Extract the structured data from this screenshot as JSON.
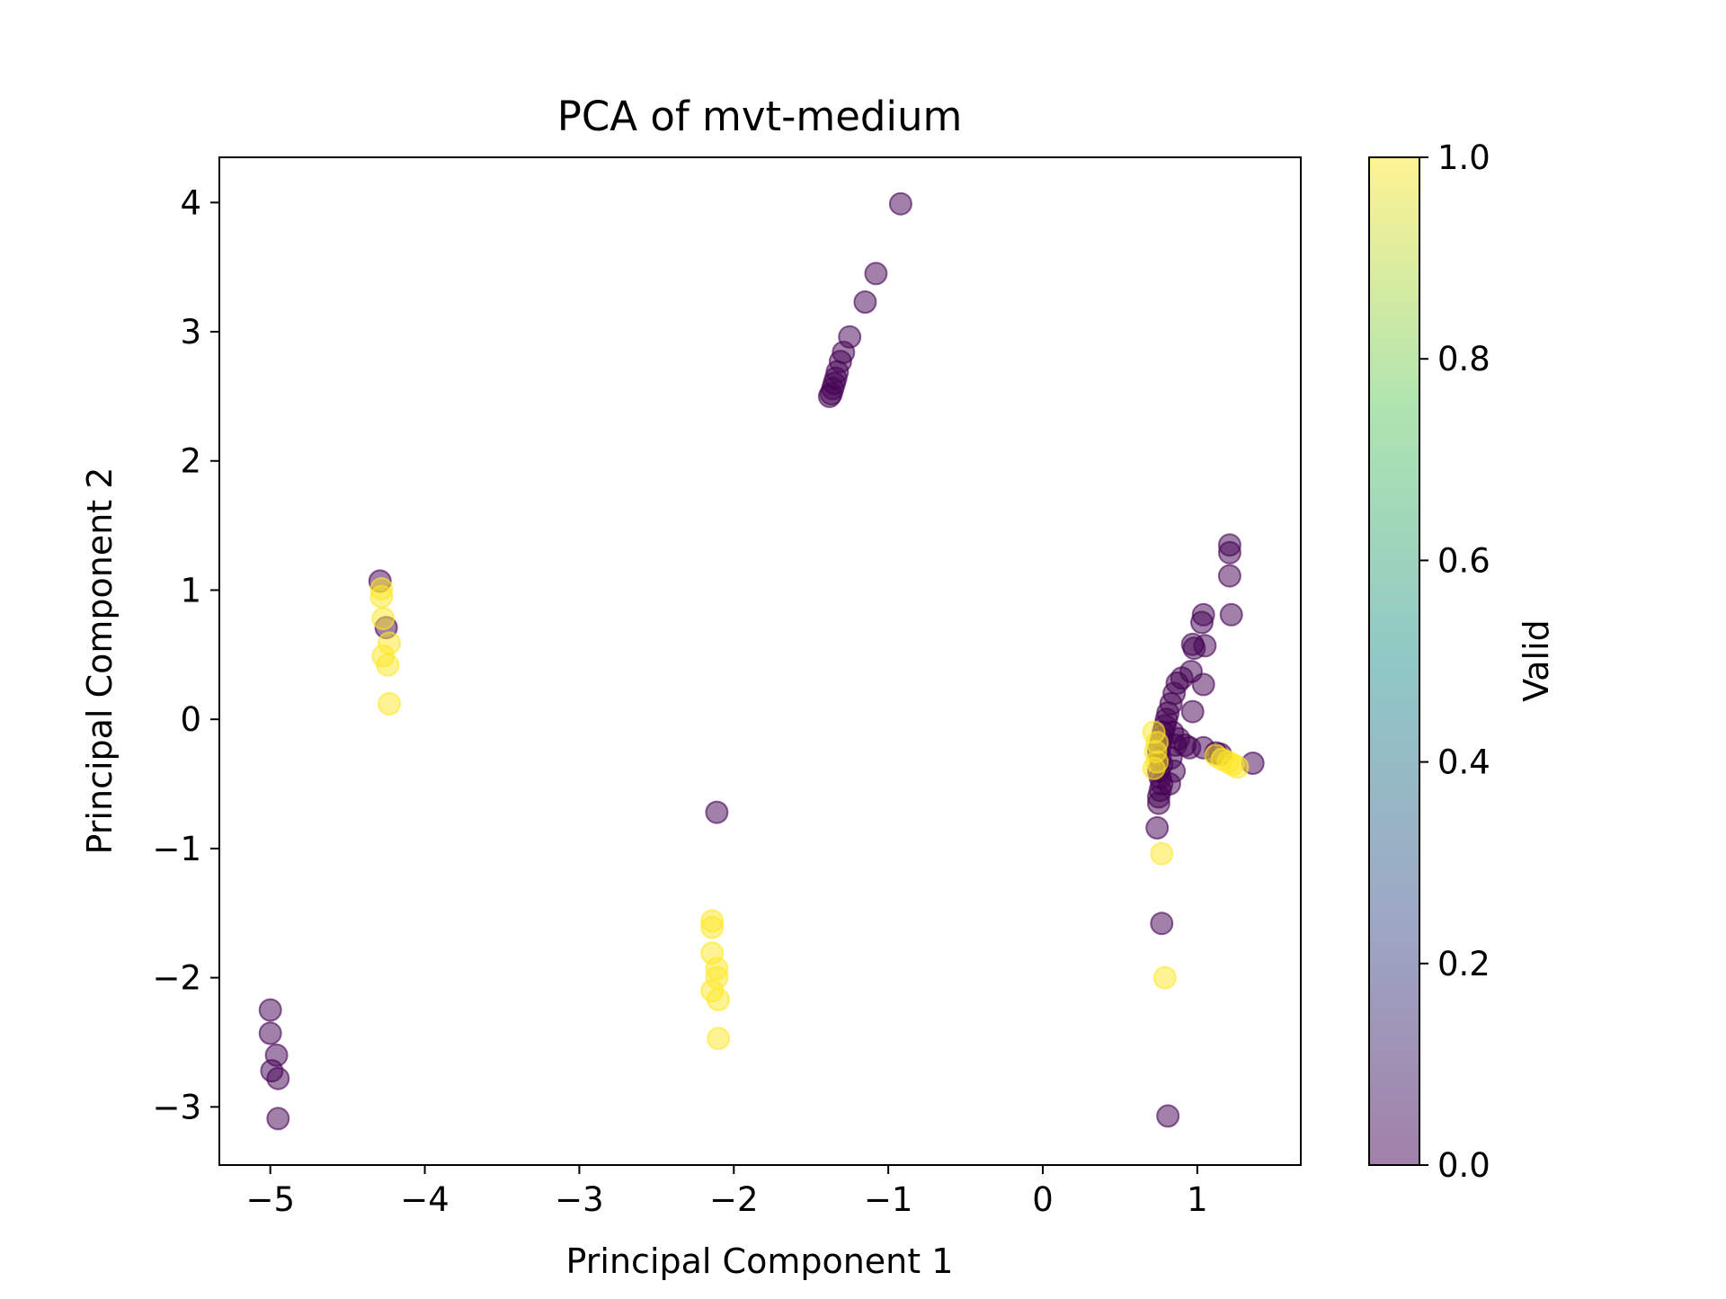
{
  "chart_data": {
    "type": "scatter",
    "title": "PCA of mvt-medium",
    "xlabel": "Principal Component 1",
    "ylabel": "Principal Component 2",
    "xlim": [
      -5.33,
      1.67
    ],
    "ylim": [
      -3.45,
      4.35
    ],
    "xticks": [
      -5,
      -4,
      -3,
      -2,
      -1,
      0,
      1
    ],
    "xtick_labels": [
      "−5",
      "−4",
      "−3",
      "−2",
      "−1",
      "0",
      "1"
    ],
    "yticks": [
      -3,
      -2,
      -1,
      0,
      1,
      2,
      3,
      4
    ],
    "ytick_labels": [
      "−3",
      "−2",
      "−1",
      "0",
      "1",
      "2",
      "3",
      "4"
    ],
    "grid": false,
    "marker_alpha": 0.5,
    "colormap": "viridis",
    "colorbar": {
      "label": "Valid",
      "range": [
        0.0,
        1.0
      ],
      "ticks": [
        0.0,
        0.2,
        0.4,
        0.6,
        0.8,
        1.0
      ],
      "tick_labels": [
        "0.0",
        "0.2",
        "0.4",
        "0.6",
        "0.8",
        "1.0"
      ],
      "colors": [
        "#440154",
        "#3b528b",
        "#21918c",
        "#5ec962",
        "#fde725"
      ]
    },
    "series": [
      {
        "value": 0,
        "color": "#440154",
        "points": [
          [
            -0.92,
            3.99
          ],
          [
            -1.08,
            3.45
          ],
          [
            -1.15,
            3.23
          ],
          [
            -1.25,
            2.96
          ],
          [
            -1.29,
            2.84
          ],
          [
            -1.31,
            2.77
          ],
          [
            -1.33,
            2.69
          ],
          [
            -1.34,
            2.64
          ],
          [
            -1.35,
            2.6
          ],
          [
            -1.36,
            2.56
          ],
          [
            -1.37,
            2.52
          ],
          [
            -1.38,
            2.5
          ],
          [
            -4.29,
            1.07
          ],
          [
            -4.25,
            0.71
          ],
          [
            -2.11,
            -0.72
          ],
          [
            -5.0,
            -2.25
          ],
          [
            -5.0,
            -2.43
          ],
          [
            -4.96,
            -2.6
          ],
          [
            -4.99,
            -2.72
          ],
          [
            -4.95,
            -2.78
          ],
          [
            -4.95,
            -3.09
          ],
          [
            1.21,
            1.35
          ],
          [
            1.21,
            1.29
          ],
          [
            1.21,
            1.11
          ],
          [
            1.22,
            0.81
          ],
          [
            1.04,
            0.81
          ],
          [
            1.03,
            0.75
          ],
          [
            0.97,
            0.58
          ],
          [
            1.05,
            0.57
          ],
          [
            0.98,
            0.55
          ],
          [
            0.96,
            0.37
          ],
          [
            0.9,
            0.32
          ],
          [
            0.87,
            0.28
          ],
          [
            1.04,
            0.27
          ],
          [
            0.85,
            0.2
          ],
          [
            0.83,
            0.12
          ],
          [
            0.81,
            0.05
          ],
          [
            0.97,
            0.06
          ],
          [
            0.8,
            -0.0
          ],
          [
            0.79,
            -0.05
          ],
          [
            0.78,
            -0.1
          ],
          [
            0.77,
            -0.15
          ],
          [
            0.76,
            -0.2
          ],
          [
            0.75,
            -0.25
          ],
          [
            0.76,
            -0.3
          ],
          [
            0.77,
            -0.35
          ],
          [
            0.75,
            -0.4
          ],
          [
            0.76,
            -0.45
          ],
          [
            0.77,
            -0.5
          ],
          [
            0.76,
            -0.55
          ],
          [
            0.75,
            -0.6
          ],
          [
            0.75,
            -0.65
          ],
          [
            0.84,
            -0.1
          ],
          [
            0.86,
            -0.2
          ],
          [
            0.83,
            -0.3
          ],
          [
            0.85,
            -0.4
          ],
          [
            0.82,
            -0.5
          ],
          [
            0.88,
            -0.15
          ],
          [
            0.92,
            -0.2
          ],
          [
            0.95,
            -0.22
          ],
          [
            1.04,
            -0.22
          ],
          [
            1.12,
            -0.26
          ],
          [
            1.15,
            -0.27
          ],
          [
            1.36,
            -0.34
          ],
          [
            0.74,
            -0.84
          ],
          [
            0.77,
            -1.58
          ],
          [
            0.81,
            -3.07
          ]
        ]
      },
      {
        "value": 1,
        "color": "#fde725",
        "points": [
          [
            -4.28,
            1.01
          ],
          [
            -4.28,
            0.95
          ],
          [
            -4.27,
            0.78
          ],
          [
            -4.23,
            0.59
          ],
          [
            -4.27,
            0.49
          ],
          [
            -4.24,
            0.42
          ],
          [
            -4.23,
            0.12
          ],
          [
            -2.14,
            -1.56
          ],
          [
            -2.14,
            -1.61
          ],
          [
            -2.14,
            -1.81
          ],
          [
            -2.11,
            -1.93
          ],
          [
            -2.11,
            -2.0
          ],
          [
            -2.14,
            -2.1
          ],
          [
            -2.1,
            -2.17
          ],
          [
            -2.1,
            -2.47
          ],
          [
            0.72,
            -0.1
          ],
          [
            0.74,
            -0.18
          ],
          [
            0.73,
            -0.25
          ],
          [
            0.74,
            -0.33
          ],
          [
            0.72,
            -0.38
          ],
          [
            1.12,
            -0.28
          ],
          [
            1.16,
            -0.31
          ],
          [
            1.2,
            -0.33
          ],
          [
            1.23,
            -0.35
          ],
          [
            1.26,
            -0.37
          ],
          [
            0.77,
            -1.04
          ],
          [
            0.79,
            -2.0
          ]
        ]
      }
    ]
  }
}
